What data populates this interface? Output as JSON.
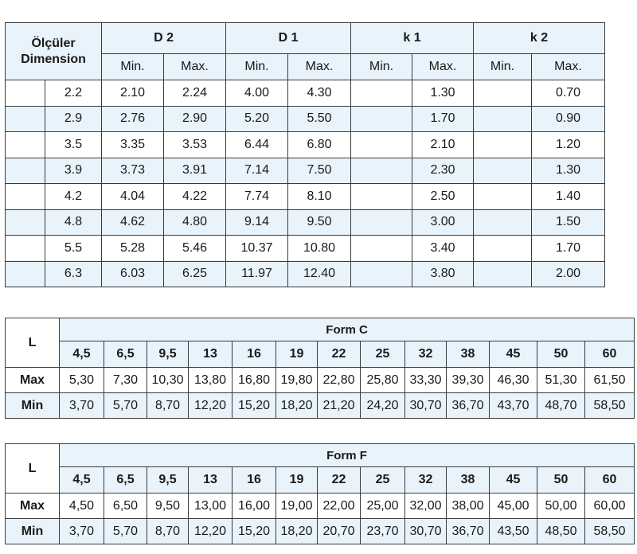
{
  "dimension_table": {
    "title_line1": "Ölçüler",
    "title_line2": "Dimension",
    "groups": [
      "D 2",
      "D 1",
      "k 1",
      "k 2"
    ],
    "subheaders": [
      "Min.",
      "Max.",
      "Min.",
      "Max.",
      "Min.",
      "Max.",
      "Min.",
      "Max."
    ],
    "rows": [
      {
        "size": "2.2",
        "d2min": "2.10",
        "d2max": "2.24",
        "d1min": "4.00",
        "d1max": "4.30",
        "k1min": "",
        "k1max": "1.30",
        "k2min": "",
        "k2max": "0.70"
      },
      {
        "size": "2.9",
        "d2min": "2.76",
        "d2max": "2.90",
        "d1min": "5.20",
        "d1max": "5.50",
        "k1min": "",
        "k1max": "1.70",
        "k2min": "",
        "k2max": "0.90"
      },
      {
        "size": "3.5",
        "d2min": "3.35",
        "d2max": "3.53",
        "d1min": "6.44",
        "d1max": "6.80",
        "k1min": "",
        "k1max": "2.10",
        "k2min": "",
        "k2max": "1.20"
      },
      {
        "size": "3.9",
        "d2min": "3.73",
        "d2max": "3.91",
        "d1min": "7.14",
        "d1max": "7.50",
        "k1min": "",
        "k1max": "2.30",
        "k2min": "",
        "k2max": "1.30"
      },
      {
        "size": "4.2",
        "d2min": "4.04",
        "d2max": "4.22",
        "d1min": "7.74",
        "d1max": "8.10",
        "k1min": "",
        "k1max": "2.50",
        "k2min": "",
        "k2max": "1.40"
      },
      {
        "size": "4.8",
        "d2min": "4.62",
        "d2max": "4.80",
        "d1min": "9.14",
        "d1max": "9.50",
        "k1min": "",
        "k1max": "3.00",
        "k2min": "",
        "k2max": "1.50"
      },
      {
        "size": "5.5",
        "d2min": "5.28",
        "d2max": "5.46",
        "d1min": "10.37",
        "d1max": "10.80",
        "k1min": "",
        "k1max": "3.40",
        "k2min": "",
        "k2max": "1.70"
      },
      {
        "size": "6.3",
        "d2min": "6.03",
        "d2max": "6.25",
        "d1min": "11.97",
        "d1max": "12.40",
        "k1min": "",
        "k1max": "3.80",
        "k2min": "",
        "k2max": "2.00"
      }
    ]
  },
  "form_c": {
    "row_label": "L",
    "title": "Form C",
    "lengths": [
      "4,5",
      "6,5",
      "9,5",
      "13",
      "16",
      "19",
      "22",
      "25",
      "32",
      "38",
      "45",
      "50",
      "60"
    ],
    "max_label": "Max",
    "max": [
      "5,30",
      "7,30",
      "10,30",
      "13,80",
      "16,80",
      "19,80",
      "22,80",
      "25,80",
      "33,30",
      "39,30",
      "46,30",
      "51,30",
      "61,50"
    ],
    "min_label": "Min",
    "min": [
      "3,70",
      "5,70",
      "8,70",
      "12,20",
      "15,20",
      "18,20",
      "21,20",
      "24,20",
      "30,70",
      "36,70",
      "43,70",
      "48,70",
      "58,50"
    ]
  },
  "form_f": {
    "row_label": "L",
    "title": "Form F",
    "lengths": [
      "4,5",
      "6,5",
      "9,5",
      "13",
      "16",
      "19",
      "22",
      "25",
      "32",
      "38",
      "45",
      "50",
      "60"
    ],
    "max_label": "Max",
    "max": [
      "4,50",
      "6,50",
      "9,50",
      "13,00",
      "16,00",
      "19,00",
      "22,00",
      "25,00",
      "32,00",
      "38,00",
      "45,00",
      "50,00",
      "60,00"
    ],
    "min_label": "Min",
    "min": [
      "3,70",
      "5,70",
      "8,70",
      "12,20",
      "15,20",
      "18,20",
      "20,70",
      "23,70",
      "30,70",
      "36,70",
      "43,50",
      "48,50",
      "58,50"
    ]
  }
}
